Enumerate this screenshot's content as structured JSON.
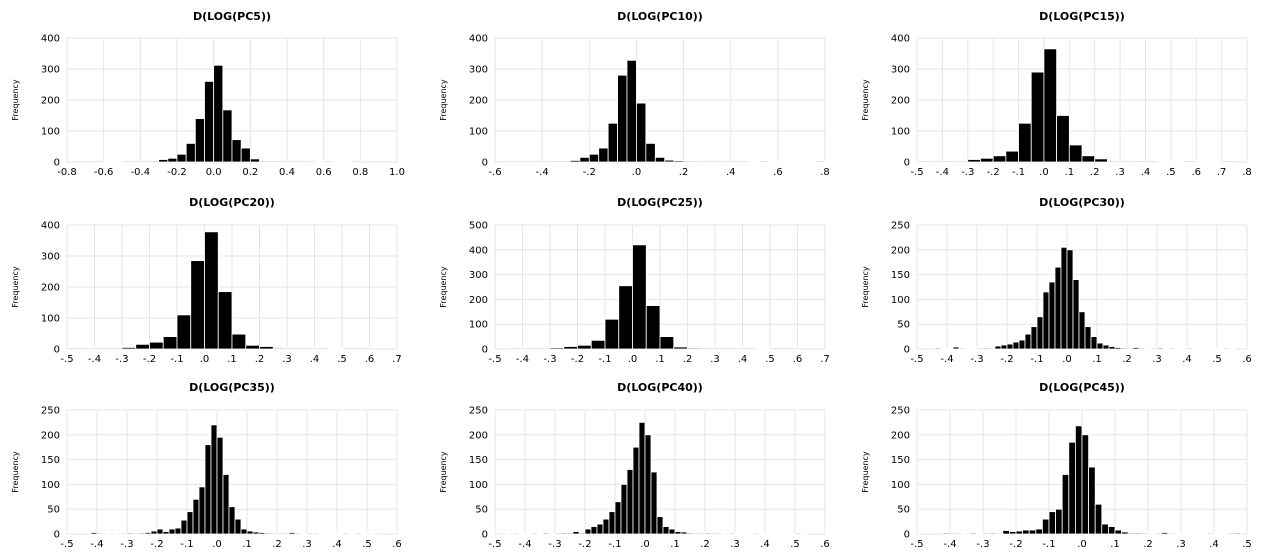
{
  "chart_data": [
    {
      "type": "bar",
      "title": "D(LOG(PC5))",
      "ylabel": "Frequency",
      "xticks": [
        "-0.8",
        "-0.6",
        "-0.4",
        "-0.2",
        "0.0",
        "0.2",
        "0.4",
        "0.6",
        "0.8",
        "1.0"
      ],
      "xlim": [
        -0.8,
        1.0
      ],
      "yticks": [
        "0",
        "100",
        "200",
        "300",
        "400"
      ],
      "ylim": [
        0,
        400
      ],
      "bin_width": 0.05,
      "bin_starts": [
        -0.65,
        -0.6,
        -0.55,
        -0.5,
        -0.45,
        -0.4,
        -0.35,
        -0.3,
        -0.25,
        -0.2,
        -0.15,
        -0.1,
        -0.05,
        0.0,
        0.05,
        0.1,
        0.15,
        0.2,
        0.25,
        0.3,
        0.35,
        0.4,
        0.45,
        0.5,
        0.55,
        0.6,
        0.65,
        0.7,
        0.75
      ],
      "values": [
        1,
        0,
        0,
        1,
        2,
        2,
        3,
        8,
        12,
        25,
        60,
        140,
        260,
        312,
        168,
        72,
        45,
        10,
        3,
        3,
        2,
        1,
        1,
        1,
        0,
        1,
        0,
        0,
        1
      ]
    },
    {
      "type": "bar",
      "title": "D(LOG(PC10))",
      "ylabel": "Frequency",
      "xticks": [
        "-.6",
        "-.4",
        "-.2",
        ".0",
        ".2",
        ".4",
        ".6",
        ".8"
      ],
      "xlim": [
        -0.6,
        0.8
      ],
      "yticks": [
        "0",
        "100",
        "200",
        "300",
        "400"
      ],
      "ylim": [
        0,
        400
      ],
      "bin_width": 0.04,
      "bin_starts": [
        -0.56,
        -0.52,
        -0.48,
        -0.44,
        -0.4,
        -0.36,
        -0.32,
        -0.28,
        -0.24,
        -0.2,
        -0.16,
        -0.12,
        -0.08,
        -0.04,
        0.0,
        0.04,
        0.08,
        0.12,
        0.16,
        0.2,
        0.24,
        0.28,
        0.32,
        0.36,
        0.4,
        0.44,
        0.48,
        0.52,
        0.56,
        0.6,
        0.64,
        0.68,
        0.72,
        0.76
      ],
      "values": [
        1,
        1,
        1,
        1,
        2,
        2,
        3,
        5,
        15,
        25,
        45,
        125,
        280,
        328,
        190,
        60,
        15,
        6,
        4,
        3,
        2,
        1,
        1,
        1,
        1,
        1,
        0,
        1,
        0,
        0,
        0,
        0,
        0,
        1
      ]
    },
    {
      "type": "bar",
      "title": "D(LOG(PC15))",
      "ylabel": "Frequency",
      "xticks": [
        "-.5",
        "-.4",
        "-.3",
        "-.2",
        "-.1",
        ".0",
        ".1",
        ".2",
        ".3",
        ".4",
        ".5",
        ".6",
        ".7",
        ".8"
      ],
      "xlim": [
        -0.5,
        0.8
      ],
      "yticks": [
        "0",
        "100",
        "200",
        "300",
        "400"
      ],
      "ylim": [
        0,
        400
      ],
      "bin_width": 0.05,
      "bin_starts": [
        -0.5,
        -0.45,
        -0.4,
        -0.35,
        -0.3,
        -0.25,
        -0.2,
        -0.15,
        -0.1,
        -0.05,
        0.0,
        0.05,
        0.1,
        0.15,
        0.2,
        0.25,
        0.3,
        0.35,
        0.4,
        0.45,
        0.5,
        0.55,
        0.6,
        0.65,
        0.7
      ],
      "values": [
        1,
        1,
        1,
        2,
        8,
        12,
        20,
        35,
        125,
        290,
        365,
        150,
        55,
        20,
        10,
        2,
        2,
        1,
        1,
        0,
        0,
        1,
        0,
        0,
        1
      ]
    },
    {
      "type": "bar",
      "title": "D(LOG(PC20))",
      "ylabel": "Frequency",
      "xticks": [
        "-.5",
        "-.4",
        "-.3",
        "-.2",
        "-.1",
        ".0",
        ".1",
        ".2",
        ".3",
        ".4",
        ".5",
        ".6",
        ".7"
      ],
      "xlim": [
        -0.5,
        0.7
      ],
      "yticks": [
        "0",
        "100",
        "200",
        "300",
        "400"
      ],
      "ylim": [
        0,
        400
      ],
      "bin_width": 0.05,
      "bin_starts": [
        -0.5,
        -0.45,
        -0.4,
        -0.35,
        -0.3,
        -0.25,
        -0.2,
        -0.15,
        -0.1,
        -0.05,
        0.0,
        0.05,
        0.1,
        0.15,
        0.2,
        0.25,
        0.3,
        0.35,
        0.4,
        0.45,
        0.5,
        0.55
      ],
      "values": [
        2,
        1,
        1,
        2,
        5,
        15,
        22,
        40,
        110,
        285,
        378,
        185,
        48,
        12,
        8,
        3,
        2,
        1,
        1,
        0,
        1,
        1
      ]
    },
    {
      "type": "bar",
      "title": "D(LOG(PC25))",
      "ylabel": "Frequency",
      "xticks": [
        "-.5",
        "-.4",
        "-.3",
        "-.2",
        "-.1",
        ".0",
        ".1",
        ".2",
        ".3",
        ".4",
        ".5",
        ".6",
        ".7"
      ],
      "xlim": [
        -0.5,
        0.7
      ],
      "yticks": [
        "0",
        "100",
        "200",
        "300",
        "400",
        "500"
      ],
      "ylim": [
        0,
        500
      ],
      "bin_width": 0.05,
      "bin_starts": [
        -0.45,
        -0.4,
        -0.35,
        -0.3,
        -0.25,
        -0.2,
        -0.15,
        -0.1,
        -0.05,
        0.0,
        0.05,
        0.1,
        0.15,
        0.2,
        0.25,
        0.3,
        0.35,
        0.4,
        0.45,
        0.5,
        0.55
      ],
      "values": [
        1,
        1,
        2,
        5,
        10,
        15,
        35,
        120,
        255,
        420,
        175,
        50,
        8,
        4,
        2,
        1,
        1,
        1,
        0,
        1,
        1
      ]
    },
    {
      "type": "bar",
      "title": "D(LOG(PC30))",
      "ylabel": "Frequency",
      "xticks": [
        "-.5",
        "-.4",
        "-.3",
        "-.2",
        "-.1",
        ".0",
        ".1",
        ".2",
        ".3",
        ".4",
        ".5",
        ".6"
      ],
      "xlim": [
        -0.5,
        0.6
      ],
      "yticks": [
        "0",
        "50",
        "100",
        "150",
        "200",
        "250"
      ],
      "ylim": [
        0,
        250
      ],
      "bin_width": 0.02,
      "bin_starts": [
        -0.44,
        -0.42,
        -0.4,
        -0.38,
        -0.36,
        -0.34,
        -0.32,
        -0.3,
        -0.28,
        -0.26,
        -0.24,
        -0.22,
        -0.2,
        -0.18,
        -0.16,
        -0.14,
        -0.12,
        -0.1,
        -0.08,
        -0.06,
        -0.04,
        -0.02,
        0.0,
        0.02,
        0.04,
        0.06,
        0.08,
        0.1,
        0.12,
        0.14,
        0.16,
        0.18,
        0.2,
        0.22,
        0.24,
        0.26,
        0.28,
        0.3,
        0.32,
        0.34,
        0.36,
        0.38,
        0.4,
        0.42,
        0.44,
        0.46,
        0.48,
        0.5,
        0.52,
        0.54
      ],
      "values": [
        2,
        0,
        0,
        4,
        1,
        0,
        0,
        1,
        2,
        1,
        6,
        8,
        10,
        14,
        18,
        30,
        45,
        65,
        115,
        135,
        165,
        205,
        200,
        140,
        75,
        45,
        25,
        12,
        8,
        5,
        3,
        2,
        1,
        3,
        1,
        0,
        1,
        2,
        0,
        1,
        0,
        0,
        1,
        0,
        0,
        0,
        0,
        0,
        1,
        0
      ]
    },
    {
      "type": "bar",
      "title": "D(LOG(PC35))",
      "ylabel": "Frequency",
      "xticks": [
        "-.5",
        "-.4",
        "-.3",
        "-.2",
        "-.1",
        ".0",
        ".1",
        ".2",
        ".3",
        ".4",
        ".5",
        ".6"
      ],
      "xlim": [
        -0.5,
        0.6
      ],
      "yticks": [
        "0",
        "50",
        "100",
        "150",
        "200",
        "250"
      ],
      "ylim": [
        0,
        250
      ],
      "bin_width": 0.02,
      "bin_starts": [
        -0.42,
        -0.4,
        -0.38,
        -0.36,
        -0.34,
        -0.32,
        -0.3,
        -0.28,
        -0.26,
        -0.24,
        -0.22,
        -0.2,
        -0.18,
        -0.16,
        -0.14,
        -0.12,
        -0.1,
        -0.08,
        -0.06,
        -0.04,
        -0.02,
        0.0,
        0.02,
        0.04,
        0.06,
        0.08,
        0.1,
        0.12,
        0.14,
        0.16,
        0.18,
        0.2,
        0.22,
        0.24,
        0.26,
        0.28,
        0.3,
        0.32,
        0.34,
        0.36,
        0.38,
        0.4,
        0.42,
        0.44,
        0.46,
        0.48,
        0.5,
        0.52
      ],
      "values": [
        3,
        1,
        0,
        1,
        0,
        1,
        2,
        1,
        2,
        3,
        6,
        10,
        5,
        10,
        12,
        28,
        45,
        70,
        95,
        180,
        220,
        195,
        120,
        55,
        30,
        10,
        6,
        4,
        3,
        2,
        1,
        1,
        1,
        3,
        1,
        0,
        1,
        1,
        0,
        0,
        0,
        0,
        1,
        0,
        1,
        0,
        0,
        1
      ]
    },
    {
      "type": "bar",
      "title": "D(LOG(PC40))",
      "ylabel": "Frequency",
      "xticks": [
        "-.5",
        "-.4",
        "-.3",
        "-.2",
        "-.1",
        ".0",
        ".1",
        ".2",
        ".3",
        ".4",
        ".5",
        ".6"
      ],
      "xlim": [
        -0.5,
        0.6
      ],
      "yticks": [
        "0",
        "50",
        "100",
        "150",
        "200",
        "250"
      ],
      "ylim": [
        0,
        250
      ],
      "bin_width": 0.02,
      "bin_starts": [
        -0.48,
        -0.46,
        -0.44,
        -0.42,
        -0.4,
        -0.38,
        -0.36,
        -0.34,
        -0.32,
        -0.3,
        -0.28,
        -0.26,
        -0.24,
        -0.22,
        -0.2,
        -0.18,
        -0.16,
        -0.14,
        -0.12,
        -0.1,
        -0.08,
        -0.06,
        -0.04,
        -0.02,
        0.0,
        0.02,
        0.04,
        0.06,
        0.08,
        0.1,
        0.12,
        0.14,
        0.16,
        0.18,
        0.2,
        0.22,
        0.24,
        0.26,
        0.28,
        0.3,
        0.32,
        0.34,
        0.36,
        0.38,
        0.4,
        0.42,
        0.44,
        0.46,
        0.48,
        0.5,
        0.52
      ],
      "values": [
        1,
        0,
        1,
        0,
        0,
        1,
        0,
        2,
        0,
        1,
        2,
        2,
        5,
        2,
        10,
        15,
        20,
        30,
        45,
        65,
        100,
        130,
        175,
        225,
        200,
        125,
        35,
        15,
        10,
        5,
        4,
        2,
        1,
        1,
        2,
        1,
        1,
        0,
        1,
        0,
        0,
        0,
        1,
        0,
        0,
        0,
        0,
        0,
        0,
        1,
        0
      ]
    },
    {
      "type": "bar",
      "title": "D(LOG(PC45))",
      "ylabel": "Frequency",
      "xticks": [
        "-.5",
        "-.4",
        "-.3",
        "-.2",
        "-.1",
        ".0",
        ".1",
        ".2",
        ".3",
        ".4",
        ".5"
      ],
      "xlim": [
        -0.5,
        0.5
      ],
      "yticks": [
        "0",
        "50",
        "100",
        "150",
        "200",
        "250"
      ],
      "ylim": [
        0,
        250
      ],
      "bin_width": 0.02,
      "bin_starts": [
        -0.42,
        -0.4,
        -0.38,
        -0.36,
        -0.34,
        -0.32,
        -0.3,
        -0.28,
        -0.26,
        -0.24,
        -0.22,
        -0.2,
        -0.18,
        -0.16,
        -0.14,
        -0.12,
        -0.1,
        -0.08,
        -0.06,
        -0.04,
        -0.02,
        0.0,
        0.02,
        0.04,
        0.06,
        0.08,
        0.1,
        0.12,
        0.14,
        0.16,
        0.18,
        0.2,
        0.22,
        0.24,
        0.26,
        0.28,
        0.3,
        0.32,
        0.34,
        0.36,
        0.38,
        0.4,
        0.42,
        0.44,
        0.46
      ],
      "values": [
        2,
        1,
        1,
        0,
        2,
        0,
        1,
        2,
        1,
        7,
        5,
        6,
        8,
        8,
        10,
        30,
        45,
        50,
        120,
        185,
        218,
        200,
        135,
        60,
        20,
        15,
        8,
        4,
        2,
        2,
        1,
        0,
        1,
        3,
        1,
        0,
        0,
        0,
        0,
        0,
        1,
        0,
        0,
        1,
        2
      ]
    }
  ]
}
